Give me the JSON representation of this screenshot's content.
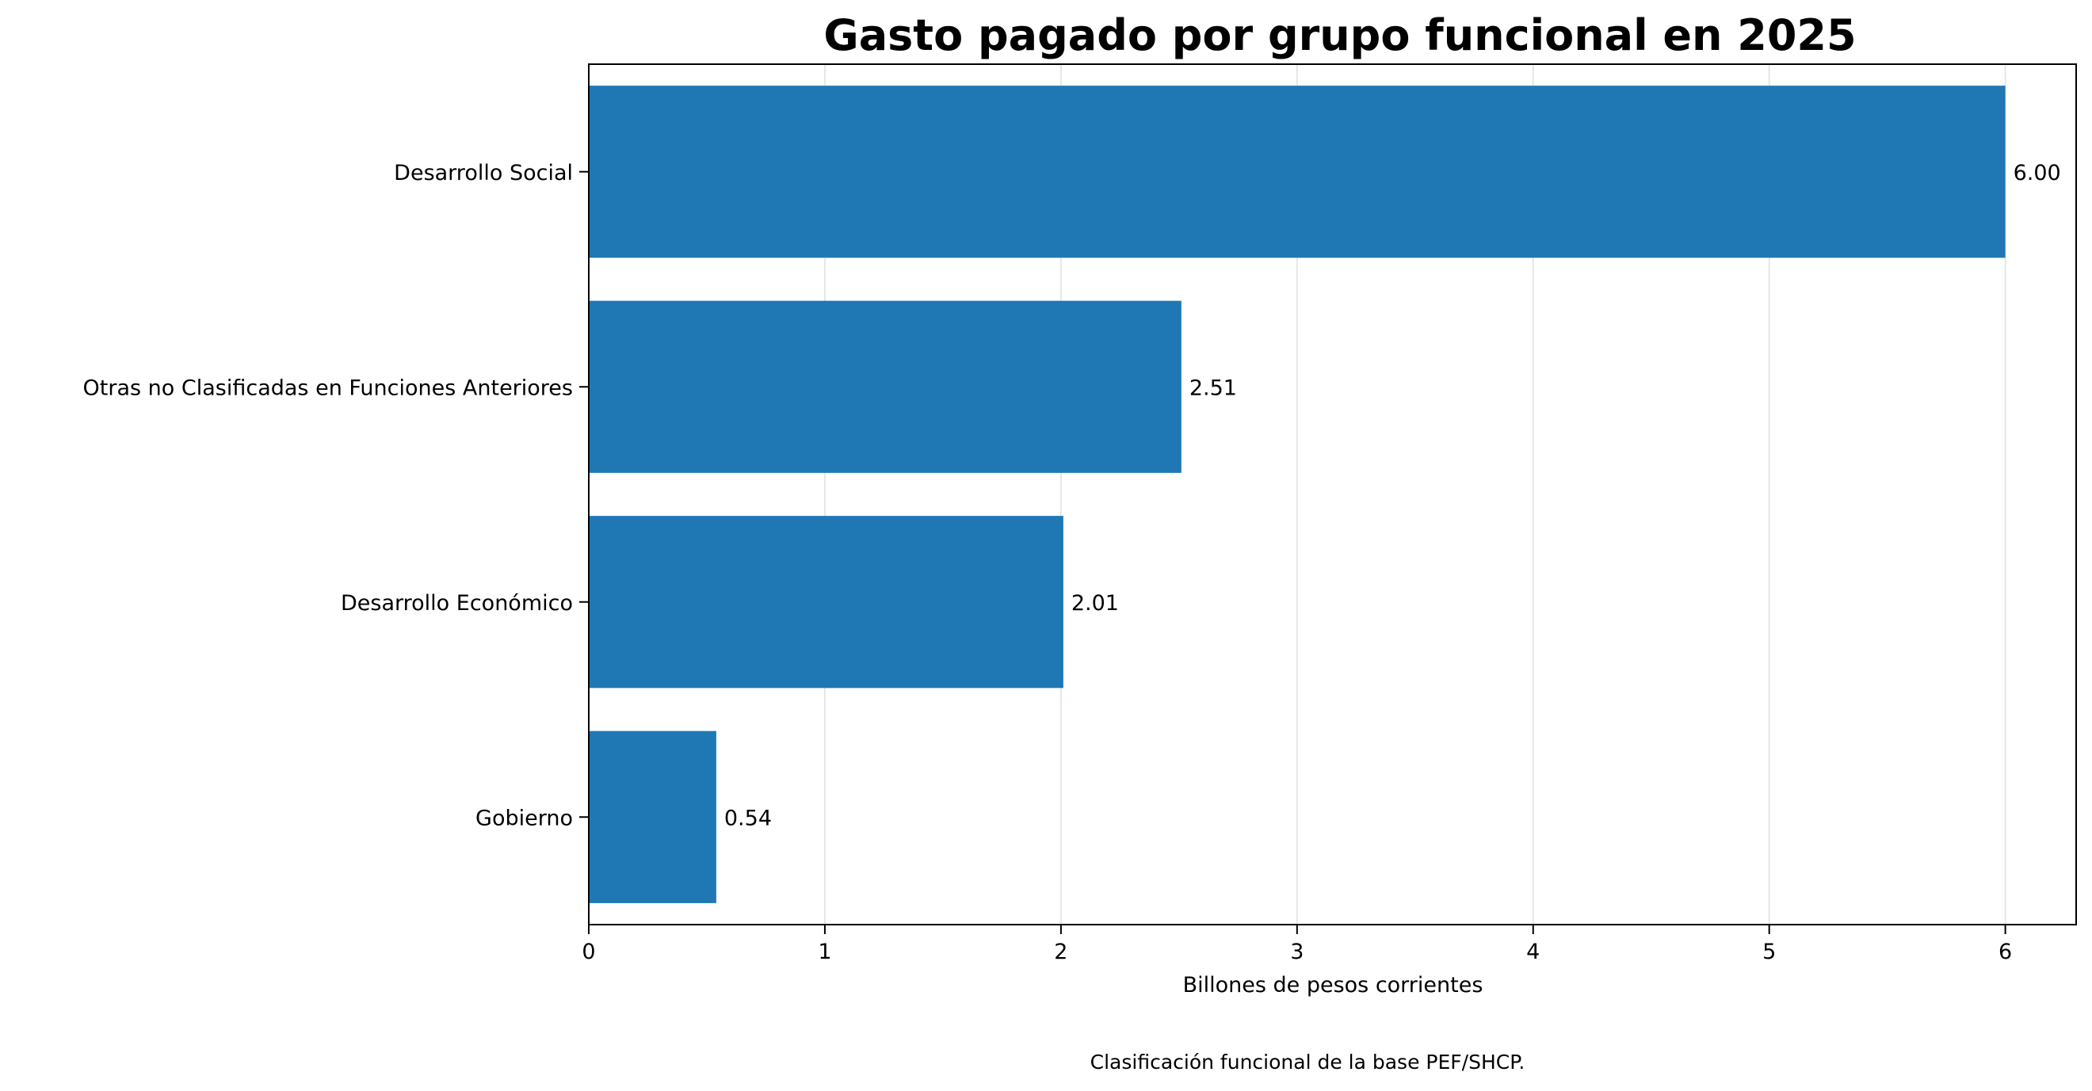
{
  "chart_data": {
    "type": "bar",
    "orientation": "horizontal",
    "title": "Gasto pagado por grupo funcional en 2025",
    "xlabel": "Billones de pesos corrientes",
    "ylabel": "",
    "categories": [
      "Desarrollo Social",
      "Otras no Clasificadas en Funciones Anteriores",
      "Desarrollo Económico",
      "Gobierno"
    ],
    "values": [
      6.0,
      2.51,
      2.01,
      0.54
    ],
    "value_labels": [
      "6.00",
      "2.51",
      "2.01",
      "0.54"
    ],
    "xlim": [
      0,
      6.3
    ],
    "xticks": [
      0,
      1,
      2,
      3,
      4,
      5,
      6
    ],
    "xtick_labels": [
      "0",
      "1",
      "2",
      "3",
      "4",
      "5",
      "6"
    ],
    "grid": "vertical, light",
    "bar_color": "#1f77b4",
    "caption": "Clasificación funcional de la base PEF/SHCP."
  }
}
